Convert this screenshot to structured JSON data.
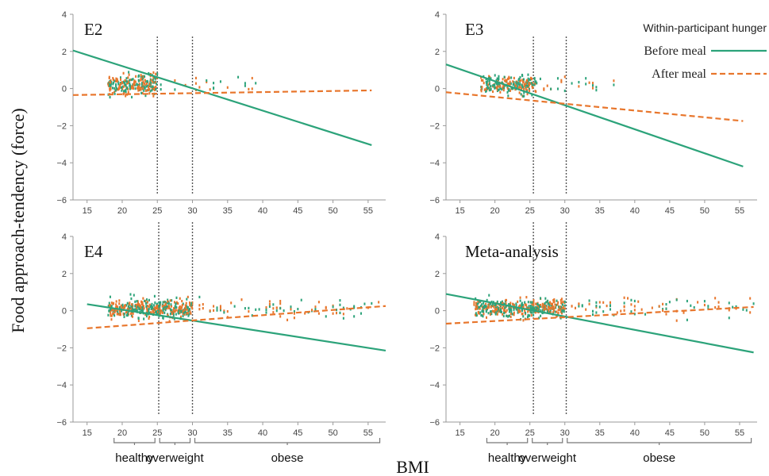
{
  "figure": {
    "ylabel": "Food approach-tendency (force)",
    "xlabel": "BMI",
    "legend": {
      "title": "Within-participant hunger",
      "placement": "top-right",
      "entries": [
        {
          "label": "Before meal",
          "color": "#2ca37a",
          "style": "solid"
        },
        {
          "label": "After meal",
          "color": "#e8762c",
          "style": "dashed"
        }
      ]
    },
    "bmi_categories": [
      {
        "label": "healthy",
        "from": 18.5,
        "to": 25
      },
      {
        "label": "overweight",
        "from": 25,
        "to": 30
      },
      {
        "label": "obese",
        "from": 30,
        "to": 57
      }
    ]
  },
  "chart_data": [
    {
      "type": "scatter",
      "title": "E2",
      "xlim": [
        13,
        57.5
      ],
      "ylim": [
        -6,
        4
      ],
      "xticks": [
        15,
        20,
        25,
        30,
        35,
        40,
        45,
        50,
        55
      ],
      "yticks": [
        -6,
        -4,
        -2,
        0,
        2,
        4
      ],
      "vlines": [
        25,
        30
      ],
      "grid": false,
      "series": [
        {
          "name": "Before meal",
          "line": {
            "x": [
              13,
              55.5
            ],
            "y": [
              2.05,
              -3.05
            ]
          }
        },
        {
          "name": "After meal",
          "line": {
            "x": [
              13,
              55.5
            ],
            "y": [
              -0.35,
              -0.1
            ]
          }
        }
      ],
      "points": {
        "x_range": [
          16.5,
          39
        ],
        "y_center": 0.2,
        "dense_range": [
          18,
          25
        ]
      }
    },
    {
      "type": "scatter",
      "title": "E3",
      "xlim": [
        13,
        57.5
      ],
      "ylim": [
        -6,
        4
      ],
      "xticks": [
        15,
        20,
        25,
        30,
        35,
        40,
        45,
        50,
        55
      ],
      "yticks": [
        -6,
        -4,
        -2,
        0,
        2,
        4
      ],
      "vlines": [
        25.5,
        30.2
      ],
      "grid": false,
      "series": [
        {
          "name": "Before meal",
          "line": {
            "x": [
              13,
              55.5
            ],
            "y": [
              1.3,
              -4.2
            ]
          }
        },
        {
          "name": "After meal",
          "line": {
            "x": [
              13,
              55.5
            ],
            "y": [
              -0.2,
              -1.75
            ]
          }
        }
      ],
      "points": {
        "x_range": [
          16,
          38
        ],
        "y_center": 0.2,
        "dense_range": [
          18,
          26
        ]
      }
    },
    {
      "type": "scatter",
      "title": "E4",
      "xlim": [
        13,
        57.5
      ],
      "ylim": [
        -6,
        4
      ],
      "xticks": [
        15,
        20,
        25,
        30,
        35,
        40,
        45,
        50,
        55
      ],
      "yticks": [
        -6,
        -4,
        -2,
        0,
        2,
        4
      ],
      "vlines": [
        25.2,
        30
      ],
      "grid": false,
      "series": [
        {
          "name": "Before meal",
          "line": {
            "x": [
              15,
              57.5
            ],
            "y": [
              0.35,
              -2.15
            ]
          }
        },
        {
          "name": "After meal",
          "line": {
            "x": [
              15,
              57.5
            ],
            "y": [
              -0.95,
              0.25
            ]
          }
        }
      ],
      "points": {
        "x_range": [
          15,
          57
        ],
        "y_center": 0.1,
        "dense_range": [
          18,
          30
        ]
      }
    },
    {
      "type": "scatter",
      "title": "Meta-analysis",
      "xlim": [
        13,
        57.5
      ],
      "ylim": [
        -6,
        4
      ],
      "xticks": [
        15,
        20,
        25,
        30,
        35,
        40,
        45,
        50,
        55
      ],
      "yticks": [
        -6,
        -4,
        -2,
        0,
        2,
        4
      ],
      "vlines": [
        25.5,
        30.2
      ],
      "grid": false,
      "series": [
        {
          "name": "Before meal",
          "line": {
            "x": [
              13,
              57
            ],
            "y": [
              0.9,
              -2.25
            ]
          }
        },
        {
          "name": "After meal",
          "line": {
            "x": [
              13,
              57
            ],
            "y": [
              -0.7,
              0.2
            ]
          }
        }
      ],
      "points": {
        "x_range": [
          15,
          57
        ],
        "y_center": 0.15,
        "dense_range": [
          17,
          30
        ]
      }
    }
  ]
}
